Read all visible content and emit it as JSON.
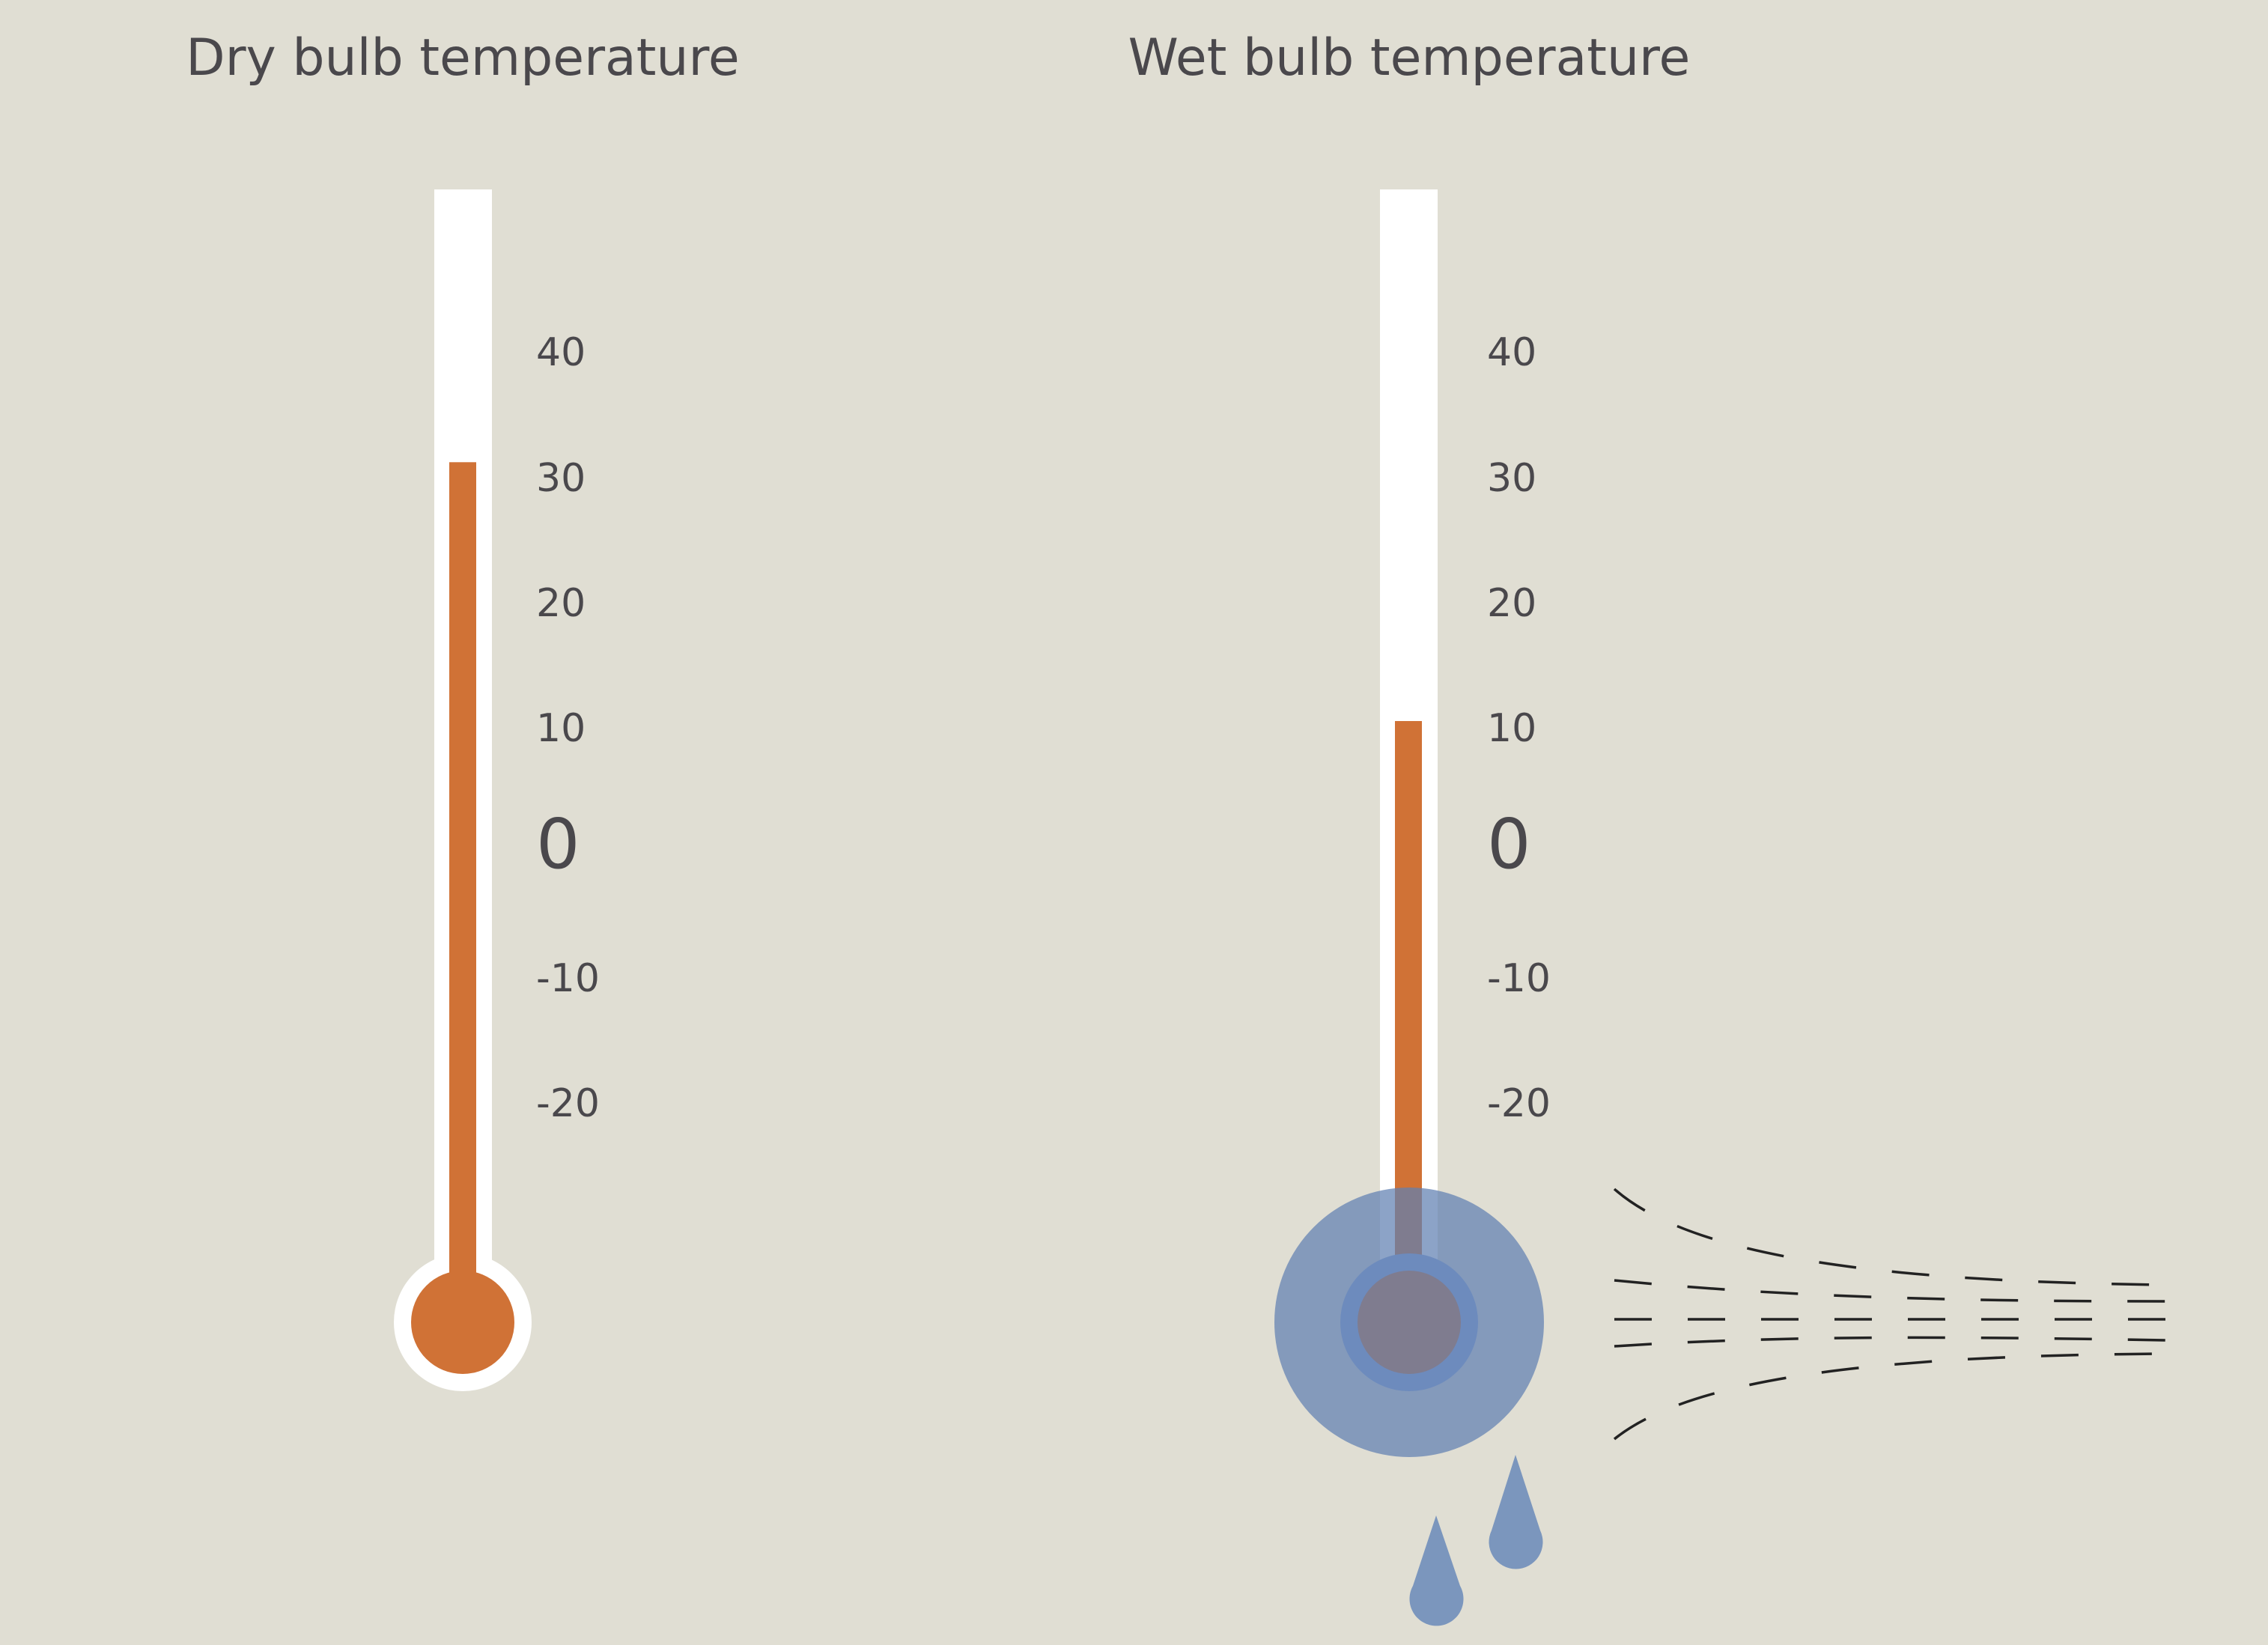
{
  "colors": {
    "background": "#e0ded3",
    "text": "#4a484c",
    "tube": "#ffffff",
    "mercury": "#d07236",
    "wet_bulb_mercury": "#7a543c",
    "water": "#5f7fb2",
    "wick": "#8fa8dc",
    "airflow_lines": "#222222"
  },
  "thermometers": [
    {
      "title": "Dry bulb temperature",
      "reading": 31,
      "wet": false,
      "scale_labels": [
        "40",
        "30",
        "20",
        "10",
        "0",
        "-10",
        "-20"
      ]
    },
    {
      "title": "Wet bulb temperature",
      "reading": 10.3,
      "wet": true,
      "scale_labels": [
        "40",
        "30",
        "20",
        "10",
        "0",
        "-10",
        "-20"
      ]
    }
  ],
  "scale_values": [
    40,
    30,
    20,
    10,
    0,
    -10,
    -20
  ]
}
